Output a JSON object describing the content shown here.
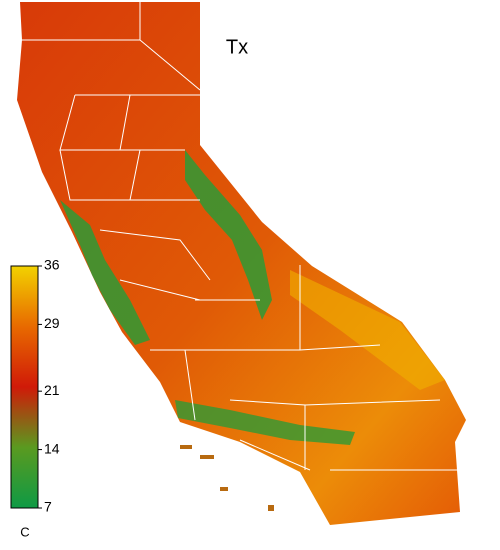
{
  "title": "Tx",
  "colorbar": {
    "unit": "C",
    "clim": [
      7,
      36
    ],
    "ticks": [
      36,
      29,
      21,
      14,
      7
    ],
    "colormap": [
      "#0e9a45",
      "#5a9a20",
      "#d01a08",
      "#e86a00",
      "#f2d200"
    ]
  }
}
